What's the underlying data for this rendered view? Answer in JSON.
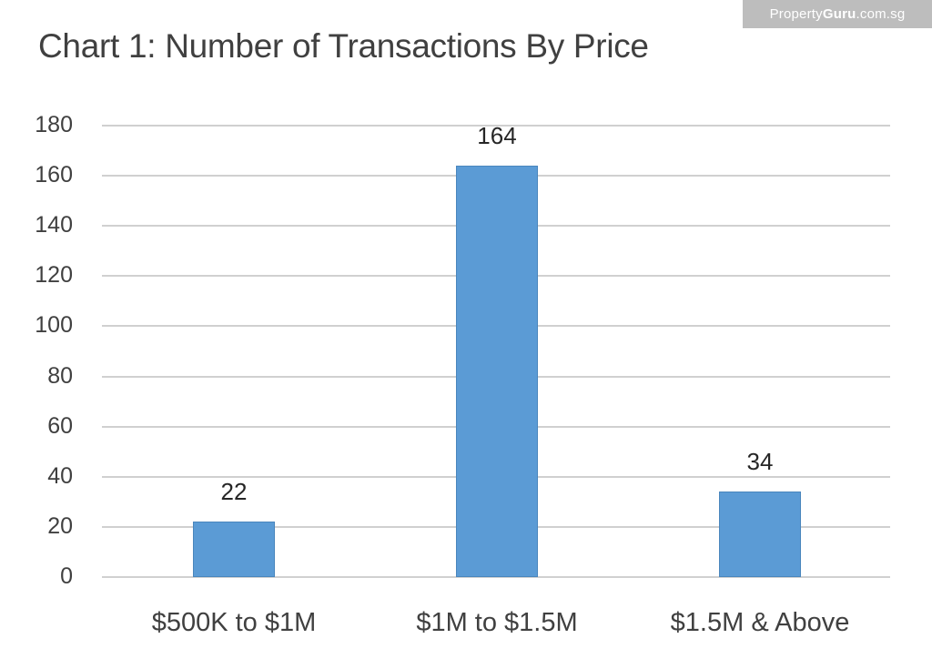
{
  "watermark": {
    "prefix": "Property",
    "bold": "Guru",
    "suffix": ".com.sg"
  },
  "title": "Chart 1: Number of Transactions By Price",
  "chart_data": {
    "type": "bar",
    "title": "Chart 1: Number of Transactions By Price",
    "xlabel": "",
    "ylabel": "",
    "categories": [
      "$500K to $1M",
      "$1M to $1.5M",
      "$1.5M & Above"
    ],
    "values": [
      22,
      164,
      34
    ],
    "data_labels": [
      "22",
      "164",
      "34"
    ],
    "ylim": [
      0,
      180
    ],
    "yticks": [
      "0",
      "20",
      "40",
      "60",
      "80",
      "100",
      "120",
      "140",
      "160",
      "180"
    ],
    "grid": true,
    "legend": null,
    "bar_color": "#5b9bd5"
  }
}
